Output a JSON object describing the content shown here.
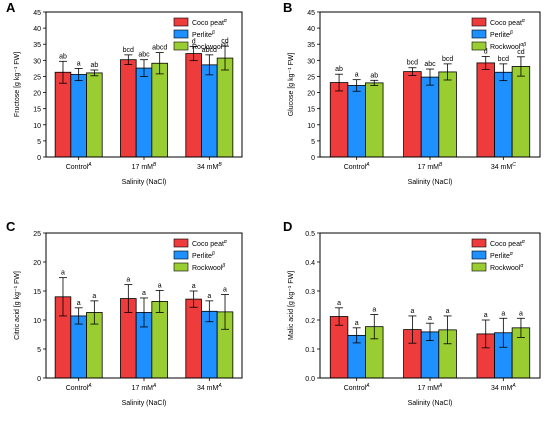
{
  "colors": {
    "coco": "#ee3b3b",
    "perlite": "#1e90ff",
    "rockwool": "#9acd32"
  },
  "chart_data": [
    {
      "panel": "A",
      "type": "bar",
      "ylabel": "Fructose [g kg⁻¹ FW]",
      "xlabel": "Salinity (NaCl)",
      "ylim": [
        0,
        45
      ],
      "yticks": [
        0,
        5,
        10,
        15,
        20,
        25,
        30,
        35,
        40,
        45
      ],
      "categories": [
        {
          "label": "Control",
          "sup": "A"
        },
        {
          "label": "17 mM",
          "sup": "B"
        },
        {
          "label": "34 mM",
          "sup": "B"
        }
      ],
      "legend": [
        {
          "label": "Coco peat",
          "sup": "α"
        },
        {
          "label": "Perlite",
          "sup": "β"
        },
        {
          "label": "Rockwool",
          "sup": "αβ"
        }
      ],
      "series": [
        {
          "name": "Coco peat",
          "values": [
            26.3,
            30.2,
            32.1
          ],
          "errors": [
            3.4,
            1.5,
            2.2
          ],
          "letters": [
            "ab",
            "bcd",
            "d"
          ]
        },
        {
          "name": "Perlite",
          "values": [
            25.6,
            27.6,
            28.6
          ],
          "errors": [
            1.9,
            2.6,
            3.1
          ],
          "letters": [
            "a",
            "abc",
            "abcd"
          ]
        },
        {
          "name": "Rockwool",
          "values": [
            26.1,
            29.1,
            30.7
          ],
          "errors": [
            0.9,
            3.3,
            3.7
          ],
          "letters": [
            "ab",
            "abcd",
            "cd"
          ]
        }
      ]
    },
    {
      "panel": "B",
      "type": "bar",
      "ylabel": "Glucose [g kg⁻¹ FW]",
      "xlabel": "Salinity (NaCl)",
      "ylim": [
        0,
        45
      ],
      "yticks": [
        0,
        5,
        10,
        15,
        20,
        25,
        30,
        35,
        40,
        45
      ],
      "categories": [
        {
          "label": "Control",
          "sup": "A"
        },
        {
          "label": "17 mM",
          "sup": "B"
        },
        {
          "label": "34 mM",
          "sup": "C"
        }
      ],
      "legend": [
        {
          "label": "Coco peat",
          "sup": "α"
        },
        {
          "label": "Perlite",
          "sup": "β"
        },
        {
          "label": "Rockwool",
          "sup": "αβ"
        }
      ],
      "series": [
        {
          "name": "Coco peat",
          "values": [
            23.1,
            26.5,
            29.2
          ],
          "errors": [
            2.6,
            1.2,
            2.0
          ],
          "letters": [
            "ab",
            "bcd",
            "d"
          ]
        },
        {
          "name": "Perlite",
          "values": [
            22.2,
            24.8,
            26.3
          ],
          "errors": [
            1.8,
            2.5,
            2.6
          ],
          "letters": [
            "a",
            "abc",
            "bcd"
          ]
        },
        {
          "name": "Rockwool",
          "values": [
            23.0,
            26.4,
            28.1
          ],
          "errors": [
            0.8,
            2.5,
            3.0
          ],
          "letters": [
            "ab",
            "bcd",
            "cd"
          ]
        }
      ]
    },
    {
      "panel": "C",
      "type": "bar",
      "ylabel": "Citric acid [g kg⁻¹ FW]",
      "xlabel": "Salinity (NaCl)",
      "ylim": [
        0,
        25
      ],
      "yticks": [
        0,
        5,
        10,
        15,
        20,
        25
      ],
      "categories": [
        {
          "label": "Control",
          "sup": "A"
        },
        {
          "label": "17 mM",
          "sup": "A"
        },
        {
          "label": "34 mM",
          "sup": "A"
        }
      ],
      "legend": [
        {
          "label": "Coco peat",
          "sup": "α"
        },
        {
          "label": "Perlite",
          "sup": "β"
        },
        {
          "label": "Rockwool",
          "sup": "β"
        }
      ],
      "series": [
        {
          "name": "Coco peat",
          "values": [
            14.0,
            13.7,
            13.6
          ],
          "errors": [
            3.3,
            2.4,
            1.4
          ],
          "letters": [
            "a",
            "a",
            "a"
          ]
        },
        {
          "name": "Perlite",
          "values": [
            10.7,
            11.3,
            11.5
          ],
          "errors": [
            1.4,
            2.5,
            1.8
          ],
          "letters": [
            "a",
            "a",
            "a"
          ]
        },
        {
          "name": "Rockwool",
          "values": [
            11.3,
            13.2,
            11.4
          ],
          "errors": [
            2.0,
            1.9,
            3.0
          ],
          "letters": [
            "a",
            "a",
            "a"
          ]
        }
      ]
    },
    {
      "panel": "D",
      "type": "bar",
      "ylabel": "Malic acid [g kg⁻¹ FW]",
      "xlabel": "Salinity (NaCl)",
      "ylim": [
        0,
        0.5
      ],
      "yticks": [
        0.0,
        0.1,
        0.2,
        0.3,
        0.4,
        0.5
      ],
      "categories": [
        {
          "label": "Control",
          "sup": "A"
        },
        {
          "label": "17 mM",
          "sup": "A"
        },
        {
          "label": "34 mM",
          "sup": "A"
        }
      ],
      "legend": [
        {
          "label": "Coco peat",
          "sup": "α"
        },
        {
          "label": "Perlite",
          "sup": "α"
        },
        {
          "label": "Rockwool",
          "sup": "α"
        }
      ],
      "series": [
        {
          "name": "Coco peat",
          "values": [
            0.212,
            0.167,
            0.152
          ],
          "errors": [
            0.03,
            0.047,
            0.048
          ],
          "letters": [
            "a",
            "a",
            "a"
          ]
        },
        {
          "name": "Perlite",
          "values": [
            0.147,
            0.159,
            0.156
          ],
          "errors": [
            0.026,
            0.03,
            0.05
          ],
          "letters": [
            "a",
            "a",
            "a"
          ]
        },
        {
          "name": "Rockwool",
          "values": [
            0.177,
            0.166,
            0.173
          ],
          "errors": [
            0.042,
            0.048,
            0.033
          ],
          "letters": [
            "a",
            "a",
            "a"
          ]
        }
      ]
    }
  ]
}
